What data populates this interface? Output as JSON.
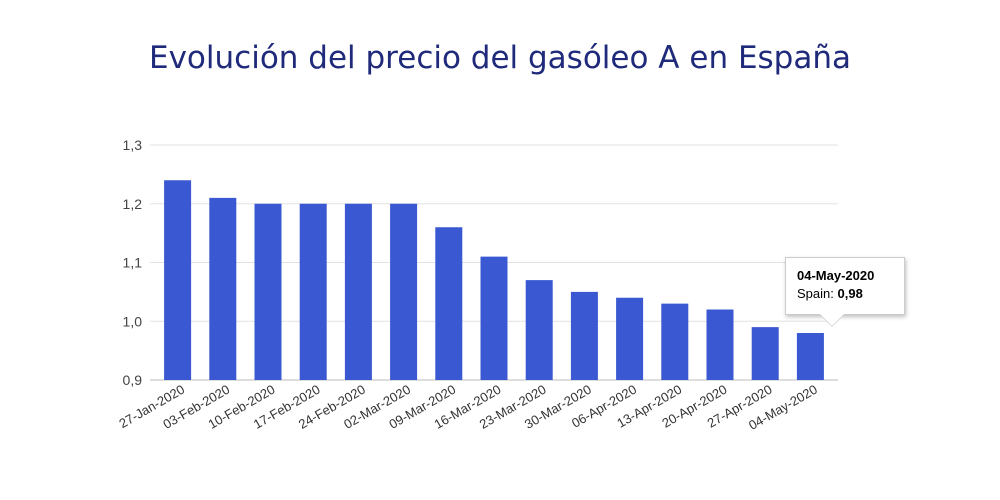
{
  "title": "Evolución del precio del gasóleo A en España",
  "chart_data": {
    "type": "bar",
    "title": "Evolución del precio del gasóleo A en España",
    "xlabel": "",
    "ylabel": "",
    "categories": [
      "27-Jan-2020",
      "03-Feb-2020",
      "10-Feb-2020",
      "17-Feb-2020",
      "24-Feb-2020",
      "02-Mar-2020",
      "09-Mar-2020",
      "16-Mar-2020",
      "23-Mar-2020",
      "30-Mar-2020",
      "06-Apr-2020",
      "13-Apr-2020",
      "20-Apr-2020",
      "27-Apr-2020",
      "04-May-2020"
    ],
    "series": [
      {
        "name": "Spain",
        "values": [
          1.24,
          1.21,
          1.2,
          1.2,
          1.2,
          1.2,
          1.16,
          1.11,
          1.07,
          1.05,
          1.04,
          1.03,
          1.02,
          0.99,
          0.98
        ]
      }
    ],
    "ylim": [
      0.9,
      1.3
    ],
    "yticks": [
      "0,9",
      "1,0",
      "1,1",
      "1,2",
      "1,3"
    ],
    "ytick_values": [
      0.9,
      1.0,
      1.1,
      1.2,
      1.3
    ],
    "grid": true,
    "legend": "none",
    "bar_color": "#3a58d1",
    "tooltip": {
      "title": "04-May-2020",
      "series_label": "Spain:",
      "value": "0,98"
    }
  }
}
